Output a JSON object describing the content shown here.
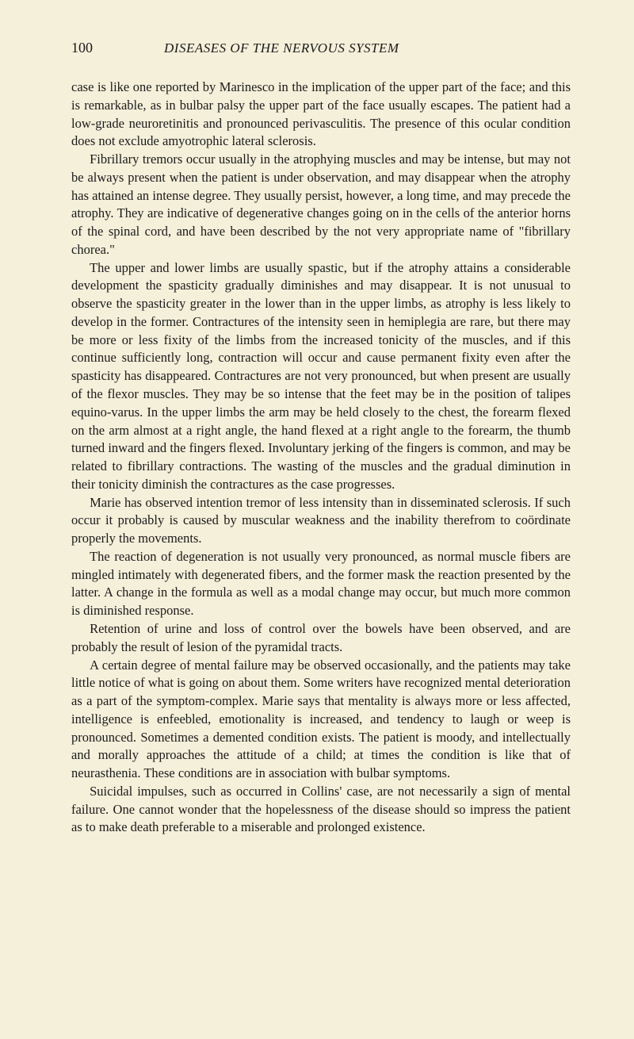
{
  "page_number": "100",
  "running_title": "DISEASES OF THE NERVOUS SYSTEM",
  "paragraphs": [
    "case is like one reported by Marinesco in the implication of the upper part of the face; and this is remarkable, as in bulbar palsy the upper part of the face usually escapes. The patient had a low-grade neuroretinitis and pronounced perivasculitis. The presence of this ocular condition does not exclude amyotrophic lateral sclerosis.",
    "Fibrillary tremors occur usually in the atrophying muscles and may be intense, but may not be always present when the patient is under observation, and may disappear when the atrophy has attained an intense degree. They usually persist, however, a long time, and may precede the atrophy. They are indicative of degenerative changes going on in the cells of the anterior horns of the spinal cord, and have been described by the not very appropriate name of \"fibrillary chorea.\"",
    "The upper and lower limbs are usually spastic, but if the atrophy attains a considerable development the spasticity gradually diminishes and may disappear. It is not unusual to observe the spasticity greater in the lower than in the upper limbs, as atrophy is less likely to develop in the former. Contractures of the intensity seen in hemiplegia are rare, but there may be more or less fixity of the limbs from the increased tonicity of the muscles, and if this continue sufficiently long, contraction will occur and cause permanent fixity even after the spasticity has disappeared. Contractures are not very pronounced, but when present are usually of the flexor muscles. They may be so intense that the feet may be in the position of talipes equino-varus. In the upper limbs the arm may be held closely to the chest, the forearm flexed on the arm almost at a right angle, the hand flexed at a right angle to the forearm, the thumb turned inward and the fingers flexed. Involuntary jerking of the fingers is common, and may be related to fibrillary contractions. The wasting of the muscles and the gradual diminution in their tonicity diminish the contractures as the case progresses.",
    "Marie has observed intention tremor of less intensity than in disseminated sclerosis. If such occur it probably is caused by muscular weakness and the inability therefrom to coördinate properly the movements.",
    "The reaction of degeneration is not usually very pronounced, as normal muscle fibers are mingled intimately with degenerated fibers, and the former mask the reaction presented by the latter. A change in the formula as well as a modal change may occur, but much more common is diminished response.",
    "Retention of urine and loss of control over the bowels have been observed, and are probably the result of lesion of the pyramidal tracts.",
    "A certain degree of mental failure may be observed occasionally, and the patients may take little notice of what is going on about them. Some writers have recognized mental deterioration as a part of the symptom-complex. Marie says that mentality is always more or less affected, intelligence is enfeebled, emotionality is increased, and tendency to laugh or weep is pronounced. Sometimes a demented condition exists. The patient is moody, and intellectually and morally approaches the attitude of a child; at times the condition is like that of neurasthenia. These conditions are in association with bulbar symptoms.",
    "Suicidal impulses, such as occurred in Collins' case, are not necessarily a sign of mental failure. One cannot wonder that the hopelessness of the disease should so impress the patient as to make death preferable to a miserable and prolonged existence."
  ],
  "colors": {
    "background": "#f5f0da",
    "text": "#1a1a1a"
  },
  "typography": {
    "body_fontsize": 16.5,
    "header_fontsize": 17,
    "page_number_fontsize": 18,
    "line_height": 1.38
  }
}
